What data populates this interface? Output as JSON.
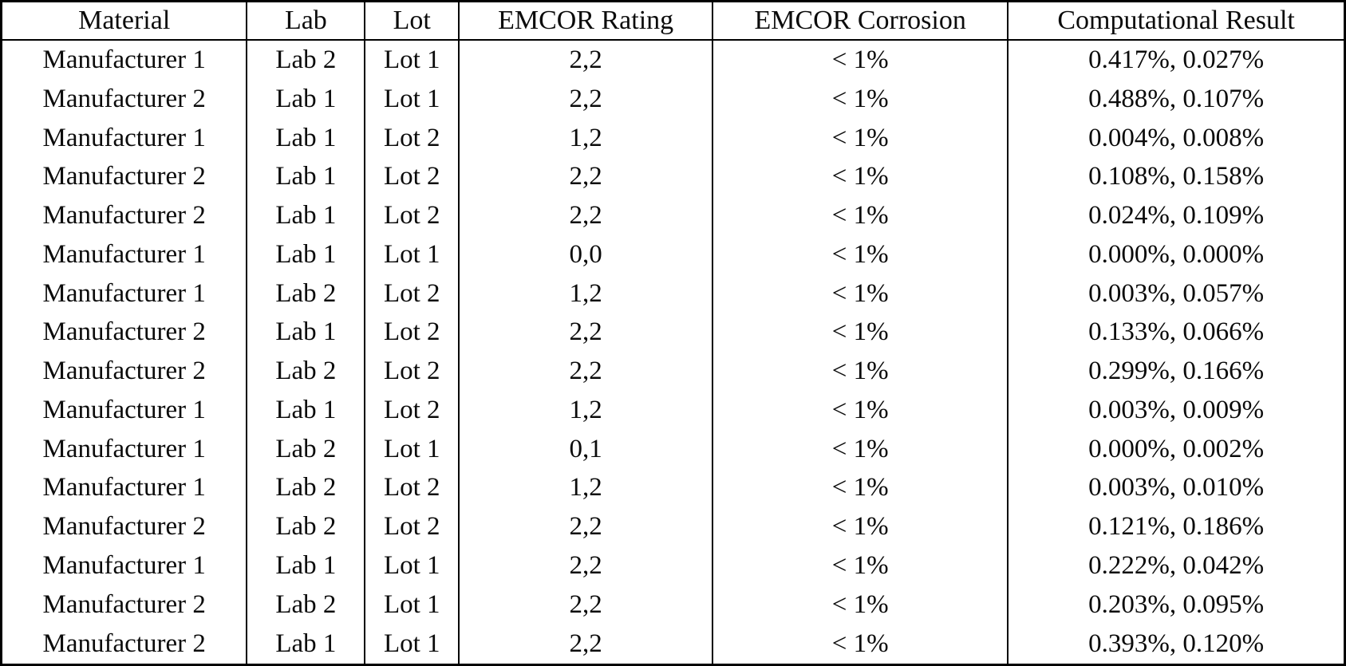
{
  "colors": {
    "background": "#ffffff",
    "border": "#000000",
    "text": "#0b0b0b"
  },
  "chart_data": {
    "type": "table",
    "columns": [
      "Material",
      "Lab",
      "Lot",
      "EMCOR Rating",
      "EMCOR Corrosion",
      "Computational Result"
    ],
    "rows": [
      [
        "Manufacturer 1",
        "Lab 2",
        "Lot 1",
        "2,2",
        "< 1%",
        "0.417%, 0.027%"
      ],
      [
        "Manufacturer 2",
        "Lab 1",
        "Lot 1",
        "2,2",
        "< 1%",
        "0.488%, 0.107%"
      ],
      [
        "Manufacturer 1",
        "Lab 1",
        "Lot 2",
        "1,2",
        "< 1%",
        "0.004%, 0.008%"
      ],
      [
        "Manufacturer 2",
        "Lab 1",
        "Lot 2",
        "2,2",
        "< 1%",
        "0.108%, 0.158%"
      ],
      [
        "Manufacturer 2",
        "Lab 1",
        "Lot 2",
        "2,2",
        "< 1%",
        "0.024%, 0.109%"
      ],
      [
        "Manufacturer 1",
        "Lab 1",
        "Lot 1",
        "0,0",
        "< 1%",
        "0.000%, 0.000%"
      ],
      [
        "Manufacturer 1",
        "Lab 2",
        "Lot 2",
        "1,2",
        "< 1%",
        "0.003%, 0.057%"
      ],
      [
        "Manufacturer 2",
        "Lab 1",
        "Lot 2",
        "2,2",
        "< 1%",
        "0.133%, 0.066%"
      ],
      [
        "Manufacturer 2",
        "Lab 2",
        "Lot 2",
        "2,2",
        "< 1%",
        "0.299%, 0.166%"
      ],
      [
        "Manufacturer 1",
        "Lab 1",
        "Lot 2",
        "1,2",
        "< 1%",
        "0.003%, 0.009%"
      ],
      [
        "Manufacturer 1",
        "Lab 2",
        "Lot 1",
        "0,1",
        "< 1%",
        "0.000%, 0.002%"
      ],
      [
        "Manufacturer 1",
        "Lab 2",
        "Lot 2",
        "1,2",
        "< 1%",
        "0.003%, 0.010%"
      ],
      [
        "Manufacturer 2",
        "Lab 2",
        "Lot 2",
        "2,2",
        "< 1%",
        "0.121%, 0.186%"
      ],
      [
        "Manufacturer 1",
        "Lab 1",
        "Lot 1",
        "2,2",
        "< 1%",
        "0.222%, 0.042%"
      ],
      [
        "Manufacturer 2",
        "Lab 2",
        "Lot 1",
        "2,2",
        "< 1%",
        "0.203%, 0.095%"
      ],
      [
        "Manufacturer 2",
        "Lab 1",
        "Lot 1",
        "2,2",
        "< 1%",
        "0.393%, 0.120%"
      ]
    ]
  }
}
